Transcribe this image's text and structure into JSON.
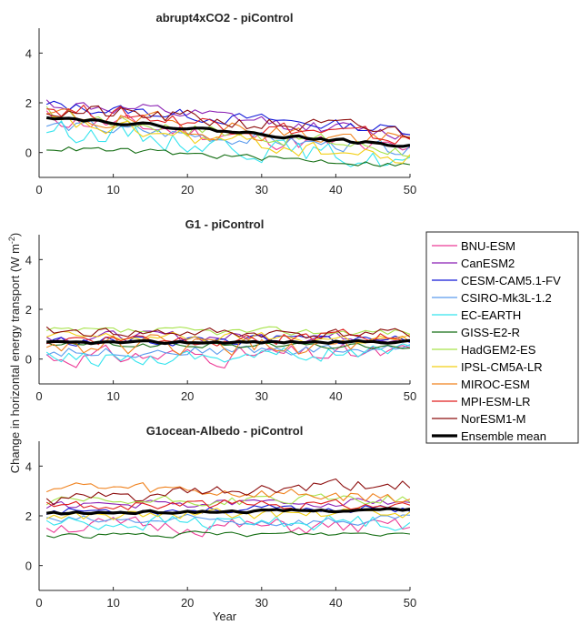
{
  "figure": {
    "ylabel_main": "Change in horizontal energy transport (W m",
    "ylabel_sup": "-2",
    "ylabel_end": ")",
    "xlabel": "Year"
  },
  "legend": [
    {
      "name": "BNU-ESM",
      "color": "#ec3b96"
    },
    {
      "name": "CanESM2",
      "color": "#8a1fb3"
    },
    {
      "name": "CESM-CAM5.1-FV",
      "color": "#1218d8"
    },
    {
      "name": "CSIRO-Mk3L-1.2",
      "color": "#5b9bed"
    },
    {
      "name": "EC-EARTH",
      "color": "#35e4ee"
    },
    {
      "name": "GISS-E2-R",
      "color": "#156e14"
    },
    {
      "name": "HadGEM2-ES",
      "color": "#a7e34b"
    },
    {
      "name": "IPSL-CM5A-LR",
      "color": "#f2cf15"
    },
    {
      "name": "MIROC-ESM",
      "color": "#f0821e"
    },
    {
      "name": "MPI-ESM-LR",
      "color": "#e01d1d"
    },
    {
      "name": "NorESM1-M",
      "color": "#8c0d0d"
    },
    {
      "name": "Ensemble mean",
      "color": "#000000"
    }
  ],
  "chart_data": [
    {
      "type": "line",
      "title": "abrupt4xCO2 - piControl",
      "xlim": [
        0,
        50
      ],
      "ylim": [
        -1,
        5
      ],
      "xticks": [
        "0",
        "10",
        "20",
        "30",
        "40",
        "50"
      ],
      "yticks": [
        "0",
        "2",
        "4"
      ],
      "x": [
        1,
        50
      ],
      "series": [
        {
          "name": "BNU-ESM",
          "start": 1.4,
          "end": 0.0,
          "noise": 0.35,
          "seed": 11
        },
        {
          "name": "CanESM2",
          "start": 2.0,
          "end": 0.7,
          "noise": 0.25,
          "seed": 12
        },
        {
          "name": "CESM-CAM5.1-FV",
          "start": 1.9,
          "end": 0.9,
          "noise": 0.22,
          "seed": 13
        },
        {
          "name": "CSIRO-Mk3L-1.2",
          "start": 1.1,
          "end": 0.1,
          "noise": 0.25,
          "seed": 14
        },
        {
          "name": "EC-EARTH",
          "start": 1.0,
          "end": -0.4,
          "noise": 0.4,
          "seed": 15
        },
        {
          "name": "GISS-E2-R",
          "start": 0.2,
          "end": -0.5,
          "noise": 0.12,
          "seed": 16
        },
        {
          "name": "HadGEM2-ES",
          "start": 1.6,
          "end": 0.1,
          "noise": 0.3,
          "seed": 17
        },
        {
          "name": "IPSL-CM5A-LR",
          "start": 1.2,
          "end": -0.3,
          "noise": 0.3,
          "seed": 18
        },
        {
          "name": "MIROC-ESM",
          "start": 1.5,
          "end": 0.4,
          "noise": 0.35,
          "seed": 19
        },
        {
          "name": "MPI-ESM-LR",
          "start": 1.8,
          "end": 0.5,
          "noise": 0.3,
          "seed": 20
        },
        {
          "name": "NorESM1-M",
          "start": 1.7,
          "end": 0.8,
          "noise": 0.3,
          "seed": 21
        },
        {
          "name": "Ensemble mean",
          "start": 1.45,
          "end": 0.25,
          "noise": 0.06,
          "seed": 22
        }
      ]
    },
    {
      "type": "line",
      "title": "G1 - piControl",
      "xlim": [
        0,
        50
      ],
      "ylim": [
        -1,
        5
      ],
      "xticks": [
        "0",
        "10",
        "20",
        "30",
        "40",
        "50"
      ],
      "yticks": [
        "0",
        "2",
        "4"
      ],
      "x": [
        1,
        50
      ],
      "series": [
        {
          "name": "BNU-ESM",
          "start": 0.1,
          "end": 0.2,
          "noise": 0.35,
          "seed": 31
        },
        {
          "name": "CanESM2",
          "start": 0.9,
          "end": 0.9,
          "noise": 0.2,
          "seed": 32
        },
        {
          "name": "CESM-CAM5.1-FV",
          "start": 0.7,
          "end": 0.8,
          "noise": 0.2,
          "seed": 33
        },
        {
          "name": "CSIRO-Mk3L-1.2",
          "start": 0.3,
          "end": 0.4,
          "noise": 0.2,
          "seed": 34
        },
        {
          "name": "EC-EARTH",
          "start": 0.0,
          "end": 0.3,
          "noise": 0.3,
          "seed": 35
        },
        {
          "name": "GISS-E2-R",
          "start": 0.6,
          "end": 0.5,
          "noise": 0.12,
          "seed": 36
        },
        {
          "name": "HadGEM2-ES",
          "start": 1.1,
          "end": 1.1,
          "noise": 0.15,
          "seed": 37
        },
        {
          "name": "IPSL-CM5A-LR",
          "start": 0.9,
          "end": 0.8,
          "noise": 0.2,
          "seed": 38
        },
        {
          "name": "MIROC-ESM",
          "start": 0.6,
          "end": 0.4,
          "noise": 0.35,
          "seed": 39
        },
        {
          "name": "MPI-ESM-LR",
          "start": 0.8,
          "end": 0.9,
          "noise": 0.25,
          "seed": 40
        },
        {
          "name": "NorESM1-M",
          "start": 1.1,
          "end": 1.0,
          "noise": 0.2,
          "seed": 41
        },
        {
          "name": "Ensemble mean",
          "start": 0.65,
          "end": 0.7,
          "noise": 0.05,
          "seed": 42
        }
      ]
    },
    {
      "type": "line",
      "title": "G1ocean-Albedo - piControl",
      "xlim": [
        0,
        50
      ],
      "ylim": [
        -1,
        5
      ],
      "xticks": [
        "0",
        "10",
        "20",
        "30",
        "40",
        "50"
      ],
      "yticks": [
        "0",
        "2",
        "4"
      ],
      "x": [
        1,
        50
      ],
      "series": [
        {
          "name": "BNU-ESM",
          "start": 1.6,
          "end": 1.5,
          "noise": 0.3,
          "seed": 51
        },
        {
          "name": "CanESM2",
          "start": 2.4,
          "end": 2.6,
          "noise": 0.15,
          "seed": 52
        },
        {
          "name": "CESM-CAM5.1-FV",
          "start": 2.2,
          "end": 2.3,
          "noise": 0.15,
          "seed": 53
        },
        {
          "name": "CSIRO-Mk3L-1.2",
          "start": 1.8,
          "end": 1.8,
          "noise": 0.2,
          "seed": 54
        },
        {
          "name": "EC-EARTH",
          "start": 1.7,
          "end": 1.8,
          "noise": 0.3,
          "seed": 55
        },
        {
          "name": "GISS-E2-R",
          "start": 1.2,
          "end": 1.3,
          "noise": 0.1,
          "seed": 56
        },
        {
          "name": "HadGEM2-ES",
          "start": 2.5,
          "end": 2.7,
          "noise": 0.2,
          "seed": 57
        },
        {
          "name": "IPSL-CM5A-LR",
          "start": 2.0,
          "end": 2.1,
          "noise": 0.2,
          "seed": 58
        },
        {
          "name": "MIROC-ESM",
          "start": 3.2,
          "end": 2.7,
          "noise": 0.25,
          "seed": 59
        },
        {
          "name": "MPI-ESM-LR",
          "start": 2.4,
          "end": 2.5,
          "noise": 0.2,
          "seed": 60
        },
        {
          "name": "NorESM1-M",
          "start": 2.6,
          "end": 3.3,
          "noise": 0.25,
          "seed": 61
        },
        {
          "name": "Ensemble mean",
          "start": 2.1,
          "end": 2.25,
          "noise": 0.05,
          "seed": 62
        }
      ]
    }
  ]
}
